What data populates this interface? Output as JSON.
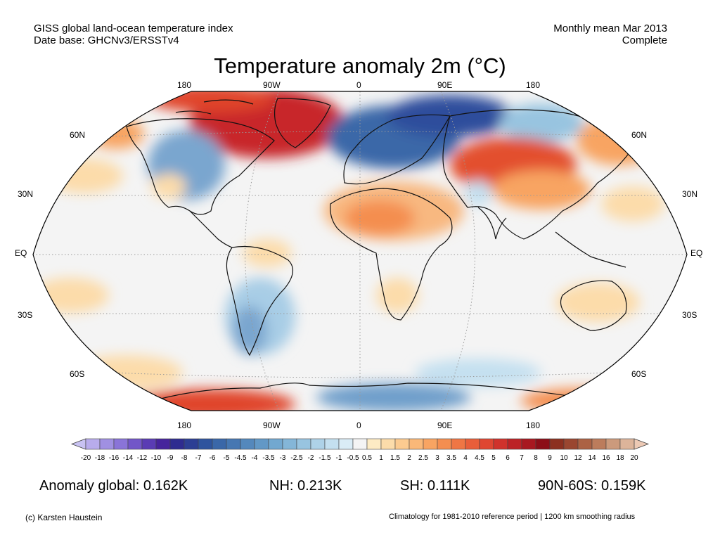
{
  "header": {
    "left_line1": "GISS global land-ocean temperature index",
    "left_line2": "Date base: GHCNv3/ERSSTv4",
    "right_line1": "Monthly mean Mar 2013",
    "right_line2": "Complete"
  },
  "title": "Temperature anomaly 2m (°C)",
  "map": {
    "projection": "robinson",
    "lon_labels_top": [
      "180",
      "90W",
      "0",
      "90E",
      "180"
    ],
    "lon_labels_bottom": [
      "180",
      "90W",
      "0",
      "90E",
      "180"
    ],
    "lat_labels_left": [
      "60N",
      "30N",
      "EQ",
      "30S",
      "60S"
    ],
    "lat_labels_right": [
      "60N",
      "30N",
      "EQ",
      "30S",
      "60S"
    ],
    "anomaly_regions": [
      {
        "region": "Greenland / Baffin Bay",
        "tone": "warm",
        "color": "#c8282c"
      },
      {
        "region": "Canada / eastern United States",
        "tone": "cool",
        "color": "#7aa6cf"
      },
      {
        "region": "Northern Europe / Western Russia",
        "tone": "cool",
        "color": "#2a56a2"
      },
      {
        "region": "Central / East Asia",
        "tone": "warm",
        "color": "#e3502f"
      },
      {
        "region": "North Africa / Middle East",
        "tone": "warm",
        "color": "#f8b880"
      },
      {
        "region": "South America / South Atlantic",
        "tone": "cool",
        "color": "#a8cde6"
      },
      {
        "region": "Antarctic coast (Pacific sector)",
        "tone": "warm",
        "color": "#e0452c"
      },
      {
        "region": "Antarctic coast (Indian sector)",
        "tone": "cool",
        "color": "#6f9fcb"
      }
    ]
  },
  "colorbar": {
    "labels": [
      "-20",
      "-18",
      "-16",
      "-14",
      "-12",
      "-10",
      "-9",
      "-8",
      "-7",
      "-6",
      "-5",
      "-4.5",
      "-4",
      "-3.5",
      "-3",
      "-2.5",
      "-2",
      "-1.5",
      "-1",
      "-0.5",
      "0.5",
      "1",
      "1.5",
      "2",
      "2.5",
      "3",
      "3.5",
      "4",
      "4.5",
      "5",
      "6",
      "7",
      "8",
      "9",
      "10",
      "12",
      "14",
      "16",
      "18",
      "20"
    ],
    "colors": [
      "#c8c2f2",
      "#b8acec",
      "#a090e2",
      "#8a74d8",
      "#7256c8",
      "#5a3cb4",
      "#46249c",
      "#2e2c90",
      "#2c3f94",
      "#2e549e",
      "#3a67a8",
      "#4677b2",
      "#5488bc",
      "#6298c6",
      "#72a8d0",
      "#84b6d8",
      "#98c4e0",
      "#aed2e8",
      "#c4e0f0",
      "#daecf6",
      "#f4f4f4",
      "#fdebc4",
      "#fcdcaa",
      "#fccb90",
      "#fab878",
      "#f8a462",
      "#f48e50",
      "#ef7644",
      "#e85e3a",
      "#df4632",
      "#d0322c",
      "#bc2226",
      "#a81820",
      "#8c0e18",
      "#8c3020",
      "#9a4630",
      "#ac6244",
      "#bc7c5c",
      "#cc9a7c",
      "#dcb49a",
      "#ecc9b4"
    ]
  },
  "stats": {
    "global": "Anomaly global: 0.162K",
    "nh": "NH: 0.213K",
    "sh": "SH: 0.111K",
    "polar": "90N-60S: 0.159K"
  },
  "footer": {
    "left": "(c) Karsten Haustein",
    "right": "Climatology for 1981-2010 reference period | 1200 km smoothing radius"
  }
}
